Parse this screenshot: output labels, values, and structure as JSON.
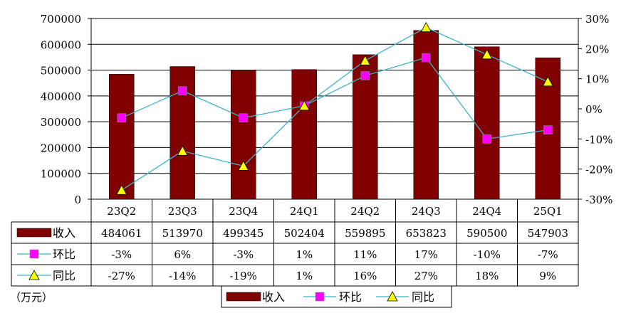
{
  "unit_label": "（万元）",
  "chart_data": {
    "type": "bar",
    "categories": [
      "23Q2",
      "23Q3",
      "23Q4",
      "24Q1",
      "24Q2",
      "24Q3",
      "24Q4",
      "25Q1"
    ],
    "ylim": [
      0,
      700000
    ],
    "y_ticks": [
      "700000",
      "600000",
      "500000",
      "400000",
      "300000",
      "200000",
      "100000",
      "0"
    ],
    "y2lim": [
      -30,
      30
    ],
    "y2_ticks": [
      "30%",
      "20%",
      "10%",
      "0%",
      "-10%",
      "-20%",
      "-30%"
    ],
    "grid": true,
    "legend_position": "bottom",
    "series": [
      {
        "name": "收入",
        "type": "bar",
        "axis": "left",
        "color": "#800000",
        "values": [
          484061,
          513970,
          499345,
          502404,
          559895,
          653823,
          590500,
          547903
        ],
        "labels": [
          "484061",
          "513970",
          "499345",
          "502404",
          "559895",
          "653823",
          "590500",
          "547903"
        ]
      },
      {
        "name": "环比",
        "type": "line",
        "axis": "right",
        "color": "#ff00ff",
        "line_color": "#3cb4c8",
        "marker": "square",
        "values": [
          -3,
          6,
          -3,
          1,
          11,
          17,
          -10,
          -7
        ],
        "labels": [
          "-3%",
          "6%",
          "-3%",
          "1%",
          "11%",
          "17%",
          "-10%",
          "-7%"
        ]
      },
      {
        "name": "同比",
        "type": "line",
        "axis": "right",
        "color": "#ffff00",
        "line_color": "#3cb4c8",
        "marker": "triangle",
        "values": [
          -27,
          -14,
          -19,
          1,
          16,
          27,
          18,
          9
        ],
        "labels": [
          "-27%",
          "-14%",
          "-19%",
          "1%",
          "16%",
          "27%",
          "18%",
          "9%"
        ]
      }
    ]
  }
}
